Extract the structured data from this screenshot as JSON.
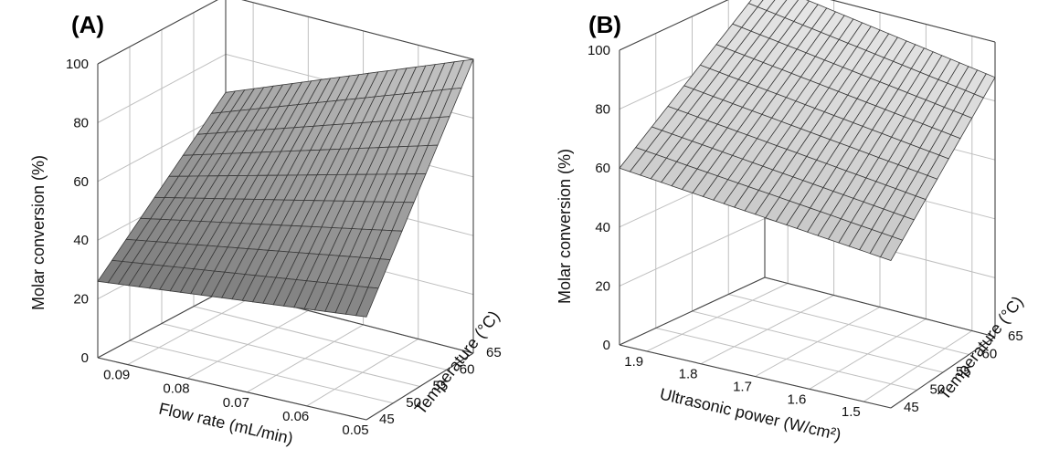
{
  "chart_data": [
    {
      "type": "surface",
      "panel_label": "(A)",
      "x": {
        "label": "Flow rate (mL/min)",
        "range": [
          0.05,
          0.095
        ],
        "ticks": [
          "0.09",
          "0.08",
          "0.07",
          "0.06",
          "0.05"
        ]
      },
      "y": {
        "label": "Temperature (°C)",
        "range": [
          45,
          65
        ],
        "ticks": [
          "45",
          "50",
          "55",
          "60",
          "65"
        ]
      },
      "z": {
        "label": "Molar conversion (%)",
        "range": [
          0,
          100
        ],
        "ticks": [
          "0",
          "20",
          "40",
          "60",
          "80",
          "100"
        ]
      },
      "surface_corners": {
        "flow_0.095_temp_45": 26,
        "flow_0.05_temp_45": 35,
        "flow_0.095_temp_65": 67,
        "flow_0.05_temp_65": 100
      },
      "grid_lines": "on",
      "surface_color": "#8a8a8a"
    },
    {
      "type": "surface",
      "panel_label": "(B)",
      "x": {
        "label": "Ultrasonic power (W/cm²)",
        "range": [
          1.45,
          1.95
        ],
        "ticks": [
          "1.9",
          "1.8",
          "1.7",
          "1.6",
          "1.5"
        ]
      },
      "y": {
        "label": "Temperature (°C)",
        "range": [
          45,
          65
        ],
        "ticks": [
          "45",
          "50",
          "55",
          "60",
          "65"
        ]
      },
      "z": {
        "label": "Molar conversion (%)",
        "range": [
          0,
          100
        ],
        "ticks": [
          "0",
          "20",
          "40",
          "60",
          "80",
          "100"
        ]
      },
      "surface_corners": {
        "power_1.95_temp_45": 60,
        "power_1.45_temp_45": 50,
        "power_1.95_temp_65": 100,
        "power_1.45_temp_65": 88
      },
      "grid_lines": "on",
      "surface_color": "#b8b8b8"
    }
  ]
}
